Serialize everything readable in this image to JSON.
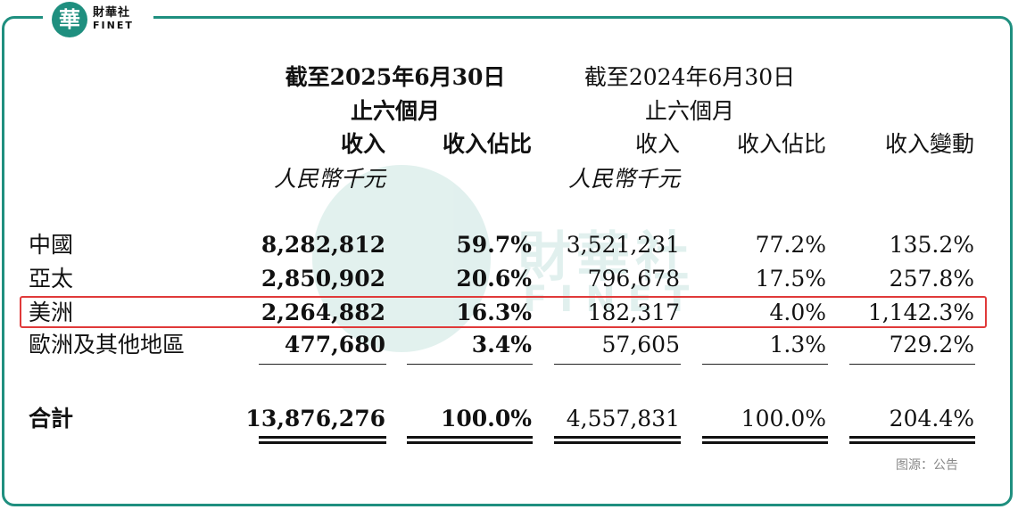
{
  "brand": {
    "logo_glyph": "華",
    "name_cn": "財華社",
    "name_en": "FINET",
    "color": "#1f8f7f"
  },
  "header": {
    "period_2025_line1": "截至2025年6月30日",
    "period_2025_line2": "止六個月",
    "period_2024_line1": "截至2024年6月30日",
    "period_2024_line2": "止六個月",
    "col_revenue_2025": "收入",
    "col_share_2025": "收入佔比",
    "col_revenue_2024": "收入",
    "col_share_2024": "收入佔比",
    "col_change": "收入變動",
    "unit_2025": "人民幣千元",
    "unit_2024": "人民幣千元"
  },
  "rows": [
    {
      "region": "中國",
      "rev_2025": "8,282,812",
      "share_2025": "59.7%",
      "rev_2024": "3,521,231",
      "share_2024": "77.2%",
      "change": "135.2%"
    },
    {
      "region": "亞太",
      "rev_2025": "2,850,902",
      "share_2025": "20.6%",
      "rev_2024": "796,678",
      "share_2024": "17.5%",
      "change": "257.8%"
    },
    {
      "region": "美洲",
      "rev_2025": "2,264,882",
      "share_2025": "16.3%",
      "rev_2024": "182,317",
      "share_2024": "4.0%",
      "change": "1,142.3%"
    },
    {
      "region": "歐洲及其他地區",
      "rev_2025": "477,680",
      "share_2025": "3.4%",
      "rev_2024": "57,605",
      "share_2024": "1.3%",
      "change": "729.2%"
    }
  ],
  "total": {
    "label": "合計",
    "rev_2025": "13,876,276",
    "share_2025": "100.0%",
    "rev_2024": "4,557,831",
    "share_2024": "100.0%",
    "change": "204.4%"
  },
  "source": "图源：公告",
  "highlight_color": "#e03a3a"
}
